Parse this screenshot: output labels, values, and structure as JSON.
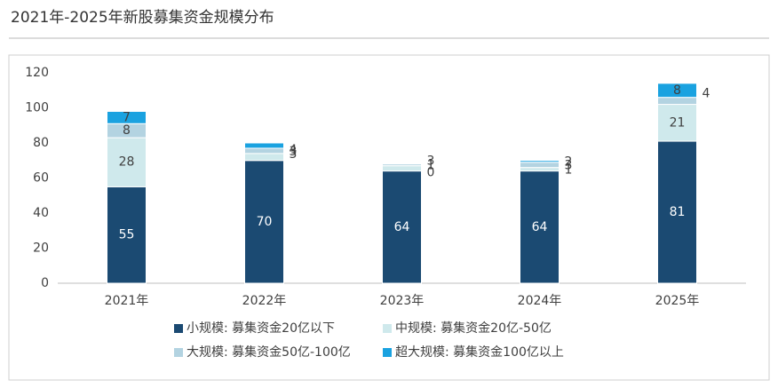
{
  "chart_data": {
    "type": "stacked_bar",
    "title": "2021年-2025年新股募集资金规模分布",
    "categories": [
      "2021年",
      "2022年",
      "2023年",
      "2024年",
      "2025年"
    ],
    "series": [
      {
        "name": "小规模: 募集资金20亿以下",
        "color": "#1b4a72",
        "values": [
          55,
          70,
          64,
          64,
          81
        ]
      },
      {
        "name": "中规模: 募集资金20亿-50亿",
        "color": "#cfe9ec",
        "values": [
          28,
          4,
          3,
          2,
          21
        ]
      },
      {
        "name": "大规模: 募集资金50亿-100亿",
        "color": "#b3d3e1",
        "values": [
          8,
          3,
          1,
          3,
          4
        ]
      },
      {
        "name": "超大规模: 募集资金100亿以上",
        "color": "#1aa2e0",
        "values": [
          7,
          3,
          0,
          1,
          8
        ]
      }
    ],
    "ylim": [
      0,
      120
    ],
    "yticks": [
      0,
      20,
      40,
      60,
      80,
      100,
      120
    ],
    "grid": false
  }
}
